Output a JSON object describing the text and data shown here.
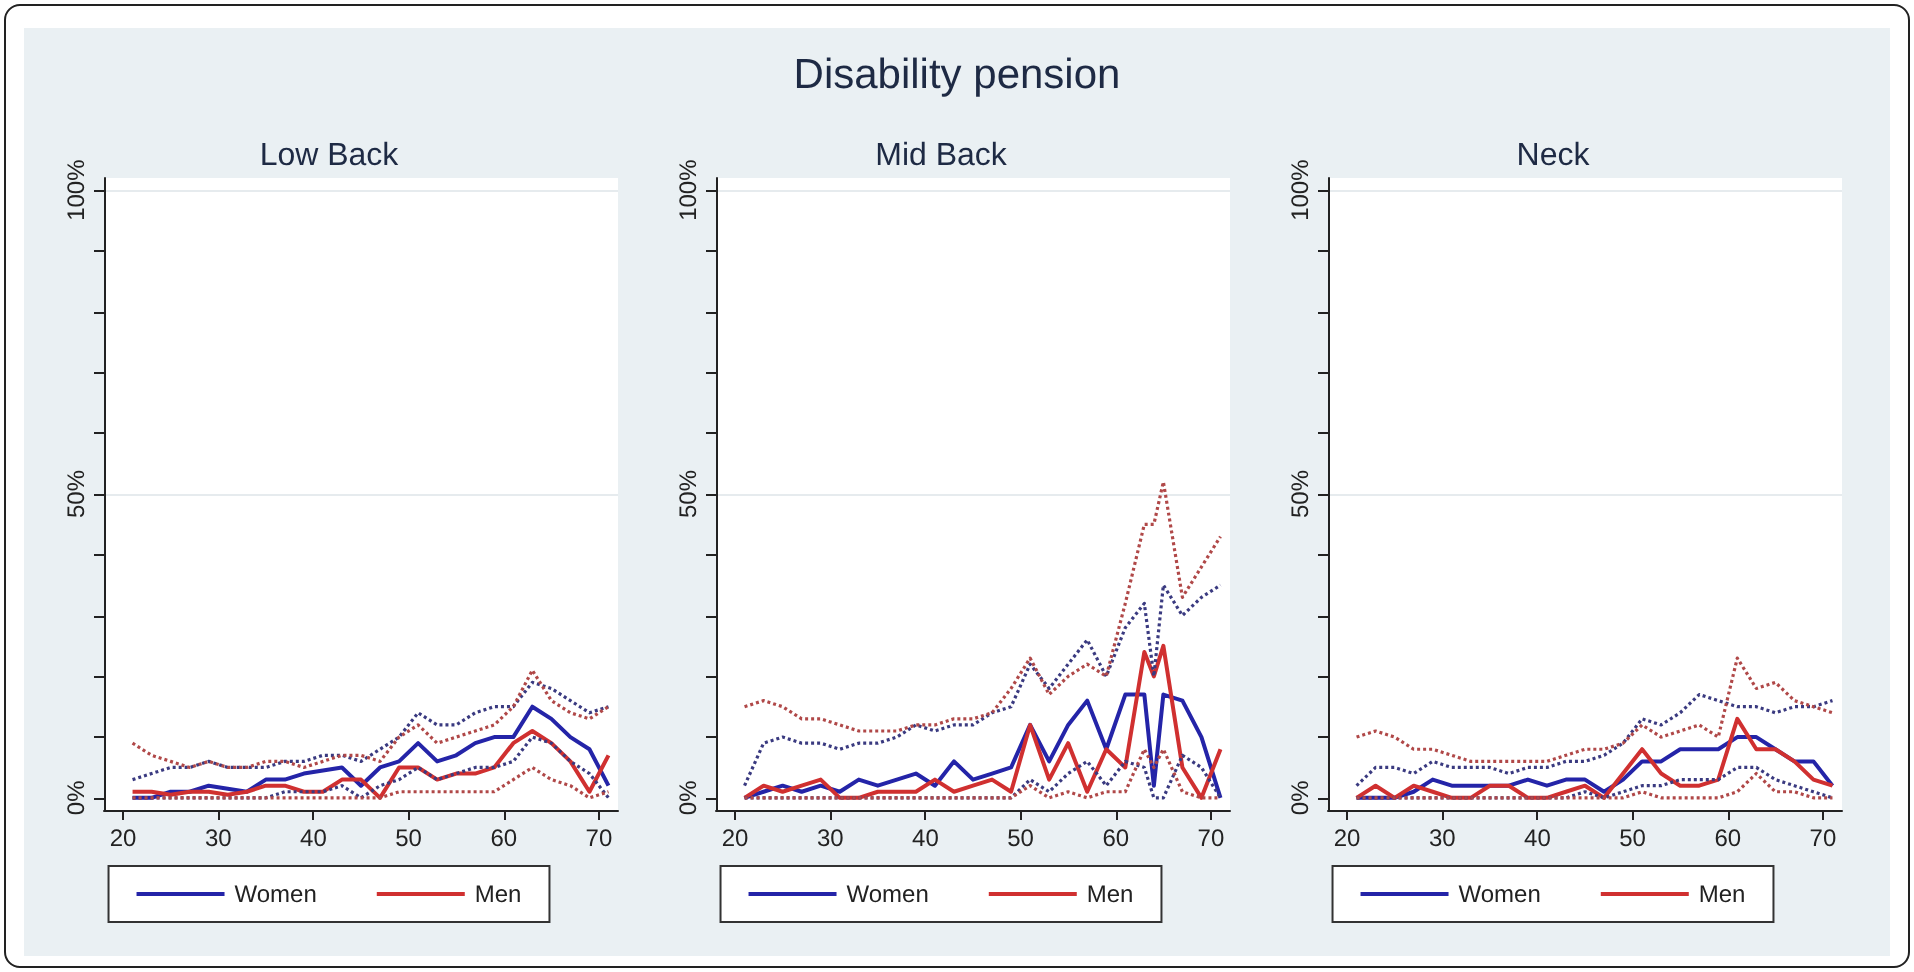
{
  "chart_data": [
    {
      "type": "line",
      "title": "Low Back",
      "annotations": [
        "Disability pension"
      ],
      "xlim": [
        18,
        72
      ],
      "ylim": [
        -2,
        102
      ],
      "xticks": [
        20,
        30,
        40,
        50,
        60,
        70
      ],
      "yticks": [
        {
          "value": 0,
          "label": "0%"
        },
        {
          "value": 10,
          "label": null
        },
        {
          "value": 20,
          "label": null
        },
        {
          "value": 30,
          "label": null
        },
        {
          "value": 40,
          "label": null
        },
        {
          "value": 50,
          "label": "50%"
        },
        {
          "value": 60,
          "label": null
        },
        {
          "value": 70,
          "label": null
        },
        {
          "value": 80,
          "label": null
        },
        {
          "value": 90,
          "label": null
        },
        {
          "value": 100,
          "label": "100%"
        }
      ],
      "grid": "y",
      "legend": "bottom",
      "marker": "none",
      "line_style": "solid",
      "x": [
        21,
        23,
        25,
        27,
        29,
        31,
        33,
        35,
        37,
        39,
        41,
        43,
        45,
        47,
        49,
        51,
        53,
        55,
        57,
        59,
        61,
        63,
        65,
        67,
        69,
        71
      ],
      "series": [
        {
          "name": "Women",
          "color": "#2424a8",
          "values": [
            0,
            0,
            1,
            1,
            2,
            1.5,
            1,
            3,
            3,
            4,
            4.5,
            5,
            2,
            5,
            6,
            9,
            6,
            7,
            9,
            10,
            10,
            15,
            13,
            10,
            8,
            2
          ]
        },
        {
          "name": "Men",
          "color": "#d03030",
          "values": [
            1,
            1,
            0.5,
            1,
            1,
            0.5,
            1,
            2,
            2,
            1,
            1,
            3,
            3,
            0,
            5,
            5,
            3,
            4,
            4,
            5,
            9,
            11,
            9,
            6,
            1,
            7
          ]
        },
        {
          "color": "#3a3a80",
          "line_style": "dotted",
          "values": [
            3,
            4,
            5,
            5,
            6,
            5,
            5,
            5,
            6,
            6,
            7,
            7,
            6,
            8,
            10,
            14,
            12,
            12,
            14,
            15,
            15,
            19,
            18,
            16,
            14,
            15
          ]
        },
        {
          "color": "#3a3a80",
          "line_style": "dotted",
          "values": [
            0,
            0,
            0,
            0,
            0,
            0,
            0,
            0,
            1,
            1,
            1,
            2,
            0,
            2,
            3,
            5,
            3,
            4,
            5,
            5,
            6,
            10,
            9,
            6,
            4,
            0
          ]
        },
        {
          "color": "#b04848",
          "line_style": "dotted",
          "values": [
            9,
            7,
            6,
            5,
            6,
            5,
            5,
            6,
            6,
            5,
            6,
            7,
            7,
            6,
            10,
            12,
            9,
            10,
            11,
            12,
            15,
            21,
            16,
            14,
            13,
            15
          ]
        },
        {
          "color": "#b04848",
          "line_style": "dotted",
          "values": [
            0,
            0,
            0,
            0,
            0,
            0,
            0,
            0,
            0,
            0,
            0,
            0,
            0,
            0,
            1,
            1,
            1,
            1,
            1,
            1,
            3,
            5,
            3,
            2,
            0,
            1
          ]
        }
      ]
    },
    {
      "type": "line",
      "title": "Mid Back",
      "xlim": [
        18,
        72
      ],
      "ylim": [
        -2,
        102
      ],
      "xticks": [
        20,
        30,
        40,
        50,
        60,
        70
      ],
      "yticks": [
        {
          "value": 0,
          "label": "0%"
        },
        {
          "value": 10,
          "label": null
        },
        {
          "value": 20,
          "label": null
        },
        {
          "value": 30,
          "label": null
        },
        {
          "value": 40,
          "label": null
        },
        {
          "value": 50,
          "label": "50%"
        },
        {
          "value": 60,
          "label": null
        },
        {
          "value": 70,
          "label": null
        },
        {
          "value": 80,
          "label": null
        },
        {
          "value": 90,
          "label": null
        },
        {
          "value": 100,
          "label": "100%"
        }
      ],
      "grid": "y",
      "legend": "bottom",
      "marker": "none",
      "line_style": "solid",
      "x": [
        21,
        23,
        25,
        27,
        29,
        31,
        33,
        35,
        37,
        39,
        41,
        43,
        45,
        47,
        49,
        51,
        53,
        55,
        57,
        59,
        61,
        63,
        64,
        65,
        67,
        69,
        71
      ],
      "series": [
        {
          "name": "Women",
          "color": "#2424a8",
          "values": [
            0,
            1,
            2,
            1,
            2,
            1,
            3,
            2,
            3,
            4,
            2,
            6,
            3,
            4,
            5,
            12,
            6,
            12,
            16,
            8,
            17,
            17,
            2,
            17,
            16,
            10,
            0
          ]
        },
        {
          "name": "Men",
          "color": "#d03030",
          "values": [
            0,
            2,
            1,
            2,
            3,
            0,
            0,
            1,
            1,
            1,
            3,
            1,
            2,
            3,
            1,
            12,
            3,
            9,
            1,
            8,
            5,
            24,
            20,
            25,
            5,
            0,
            8
          ]
        },
        {
          "color": "#3a3a80",
          "line_style": "dotted",
          "values": [
            2,
            9,
            10,
            9,
            9,
            8,
            9,
            9,
            10,
            12,
            11,
            12,
            12,
            14,
            15,
            22,
            18,
            22,
            26,
            20,
            28,
            32,
            20,
            35,
            30,
            33,
            35
          ]
        },
        {
          "color": "#3a3a80",
          "line_style": "dotted",
          "values": [
            0,
            0,
            0,
            0,
            0,
            0,
            0,
            0,
            0,
            0,
            0,
            0,
            0,
            0,
            0,
            3,
            1,
            4,
            6,
            2,
            6,
            5,
            0,
            0,
            7,
            5,
            0
          ]
        },
        {
          "color": "#b04848",
          "line_style": "dotted",
          "values": [
            15,
            16,
            15,
            13,
            13,
            12,
            11,
            11,
            11,
            12,
            12,
            13,
            13,
            14,
            18,
            23,
            17,
            20,
            22,
            20,
            32,
            45,
            45,
            52,
            33,
            38,
            43
          ]
        },
        {
          "color": "#b04848",
          "line_style": "dotted",
          "values": [
            0,
            0,
            0,
            0,
            0,
            0,
            0,
            0,
            0,
            0,
            0,
            0,
            0,
            0,
            0,
            2,
            0,
            1,
            0,
            1,
            1,
            8,
            5,
            8,
            1,
            0,
            0
          ]
        }
      ]
    },
    {
      "type": "line",
      "title": "Neck",
      "xlim": [
        18,
        72
      ],
      "ylim": [
        -2,
        102
      ],
      "xticks": [
        20,
        30,
        40,
        50,
        60,
        70
      ],
      "yticks": [
        {
          "value": 0,
          "label": "0%"
        },
        {
          "value": 10,
          "label": null
        },
        {
          "value": 20,
          "label": null
        },
        {
          "value": 30,
          "label": null
        },
        {
          "value": 40,
          "label": null
        },
        {
          "value": 50,
          "label": "50%"
        },
        {
          "value": 60,
          "label": null
        },
        {
          "value": 70,
          "label": null
        },
        {
          "value": 80,
          "label": null
        },
        {
          "value": 90,
          "label": null
        },
        {
          "value": 100,
          "label": "100%"
        }
      ],
      "grid": "y",
      "legend": "bottom",
      "marker": "none",
      "line_style": "solid",
      "x": [
        21,
        23,
        25,
        27,
        29,
        31,
        33,
        35,
        37,
        39,
        41,
        43,
        45,
        47,
        49,
        51,
        53,
        55,
        57,
        59,
        61,
        63,
        65,
        67,
        69,
        71
      ],
      "series": [
        {
          "name": "Women",
          "color": "#2424a8",
          "values": [
            0,
            0,
            0,
            1,
            3,
            2,
            2,
            2,
            2,
            3,
            2,
            3,
            3,
            1,
            3,
            6,
            6,
            8,
            8,
            8,
            10,
            10,
            8,
            6,
            6,
            2
          ]
        },
        {
          "name": "Men",
          "color": "#d03030",
          "values": [
            0,
            2,
            0,
            2,
            1,
            0,
            0,
            2,
            2,
            0,
            0,
            1,
            2,
            0,
            4,
            8,
            4,
            2,
            2,
            3,
            13,
            8,
            8,
            6,
            3,
            2
          ]
        },
        {
          "color": "#3a3a80",
          "line_style": "dotted",
          "values": [
            2,
            5,
            5,
            4,
            6,
            5,
            5,
            5,
            4,
            5,
            5,
            6,
            6,
            7,
            9,
            13,
            12,
            14,
            17,
            16,
            15,
            15,
            14,
            15,
            15,
            16
          ]
        },
        {
          "color": "#3a3a80",
          "line_style": "dotted",
          "values": [
            0,
            0,
            0,
            0,
            0,
            0,
            0,
            0,
            0,
            0,
            0,
            0,
            1,
            0,
            1,
            2,
            2,
            3,
            3,
            3,
            5,
            5,
            3,
            2,
            1,
            0
          ]
        },
        {
          "color": "#b04848",
          "line_style": "dotted",
          "values": [
            10,
            11,
            10,
            8,
            8,
            7,
            6,
            6,
            6,
            6,
            6,
            7,
            8,
            8,
            9,
            12,
            10,
            11,
            12,
            10,
            23,
            18,
            19,
            16,
            15,
            14
          ]
        },
        {
          "color": "#b04848",
          "line_style": "dotted",
          "values": [
            0,
            0,
            0,
            0,
            0,
            0,
            0,
            0,
            0,
            0,
            0,
            0,
            0,
            0,
            0,
            1,
            0,
            0,
            0,
            0,
            1,
            4,
            1,
            1,
            0,
            0
          ]
        }
      ]
    }
  ]
}
